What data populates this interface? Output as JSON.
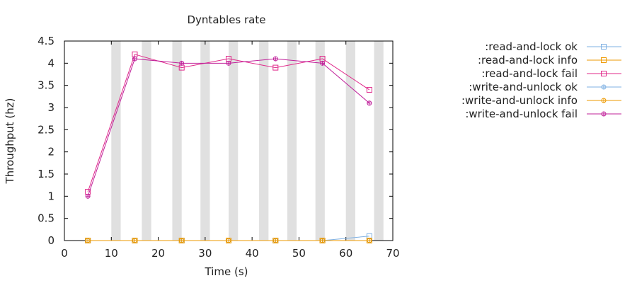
{
  "chart_data": {
    "type": "line",
    "title": "Dyntables rate",
    "xlabel": "Time (s)",
    "ylabel": "Throughput (hz)",
    "xlim": [
      0,
      70
    ],
    "ylim": [
      0,
      4.5
    ],
    "xticks": [
      0,
      10,
      20,
      30,
      40,
      50,
      60,
      70
    ],
    "yticks": [
      0,
      0.5,
      1,
      1.5,
      2,
      2.5,
      3,
      3.5,
      4,
      4.5
    ],
    "legend_position": "right",
    "grid": false,
    "shaded_intervals": [
      [
        10,
        12
      ],
      [
        16.5,
        18.5
      ],
      [
        23,
        25
      ],
      [
        29,
        31
      ],
      [
        35,
        37
      ],
      [
        41.5,
        43.5
      ],
      [
        47.5,
        49.5
      ],
      [
        53.5,
        55.5
      ],
      [
        60,
        62
      ],
      [
        66,
        68
      ]
    ],
    "shade_color": "#e0e0e0",
    "series": [
      {
        "name": ":read-and-lock ok",
        "color": "#7fb1e3",
        "marker": "square",
        "x": [
          5,
          15,
          25,
          35,
          45,
          55,
          65
        ],
        "y": [
          0,
          0,
          0,
          0,
          0,
          0,
          0.1
        ]
      },
      {
        "name": ":read-and-lock info",
        "color": "#ee9a00",
        "marker": "square",
        "x": [
          5,
          15,
          25,
          35,
          45,
          55,
          65
        ],
        "y": [
          0,
          0,
          0,
          0,
          0,
          0,
          0
        ]
      },
      {
        "name": ":read-and-lock fail",
        "color": "#e0288a",
        "marker": "square",
        "x": [
          5,
          15,
          25,
          35,
          45,
          55,
          65
        ],
        "y": [
          1.1,
          4.2,
          3.9,
          4.1,
          3.9,
          4.1,
          3.4
        ]
      },
      {
        "name": ":write-and-unlock ok",
        "color": "#7fb1e3",
        "marker": "circle",
        "x": [
          5,
          15,
          25,
          35,
          45,
          55,
          65
        ],
        "y": [
          0,
          0,
          0,
          0,
          0,
          0,
          0
        ]
      },
      {
        "name": ":write-and-unlock info",
        "color": "#ee9a00",
        "marker": "circle",
        "x": [
          5,
          15,
          25,
          35,
          45,
          55,
          65
        ],
        "y": [
          0,
          0,
          0,
          0,
          0,
          0,
          0
        ]
      },
      {
        "name": ":write-and-unlock fail",
        "color": "#c0209a",
        "marker": "circle",
        "x": [
          5,
          15,
          25,
          35,
          45,
          55,
          65
        ],
        "y": [
          1.0,
          4.1,
          4.0,
          4.0,
          4.1,
          4.0,
          3.1
        ]
      }
    ]
  }
}
